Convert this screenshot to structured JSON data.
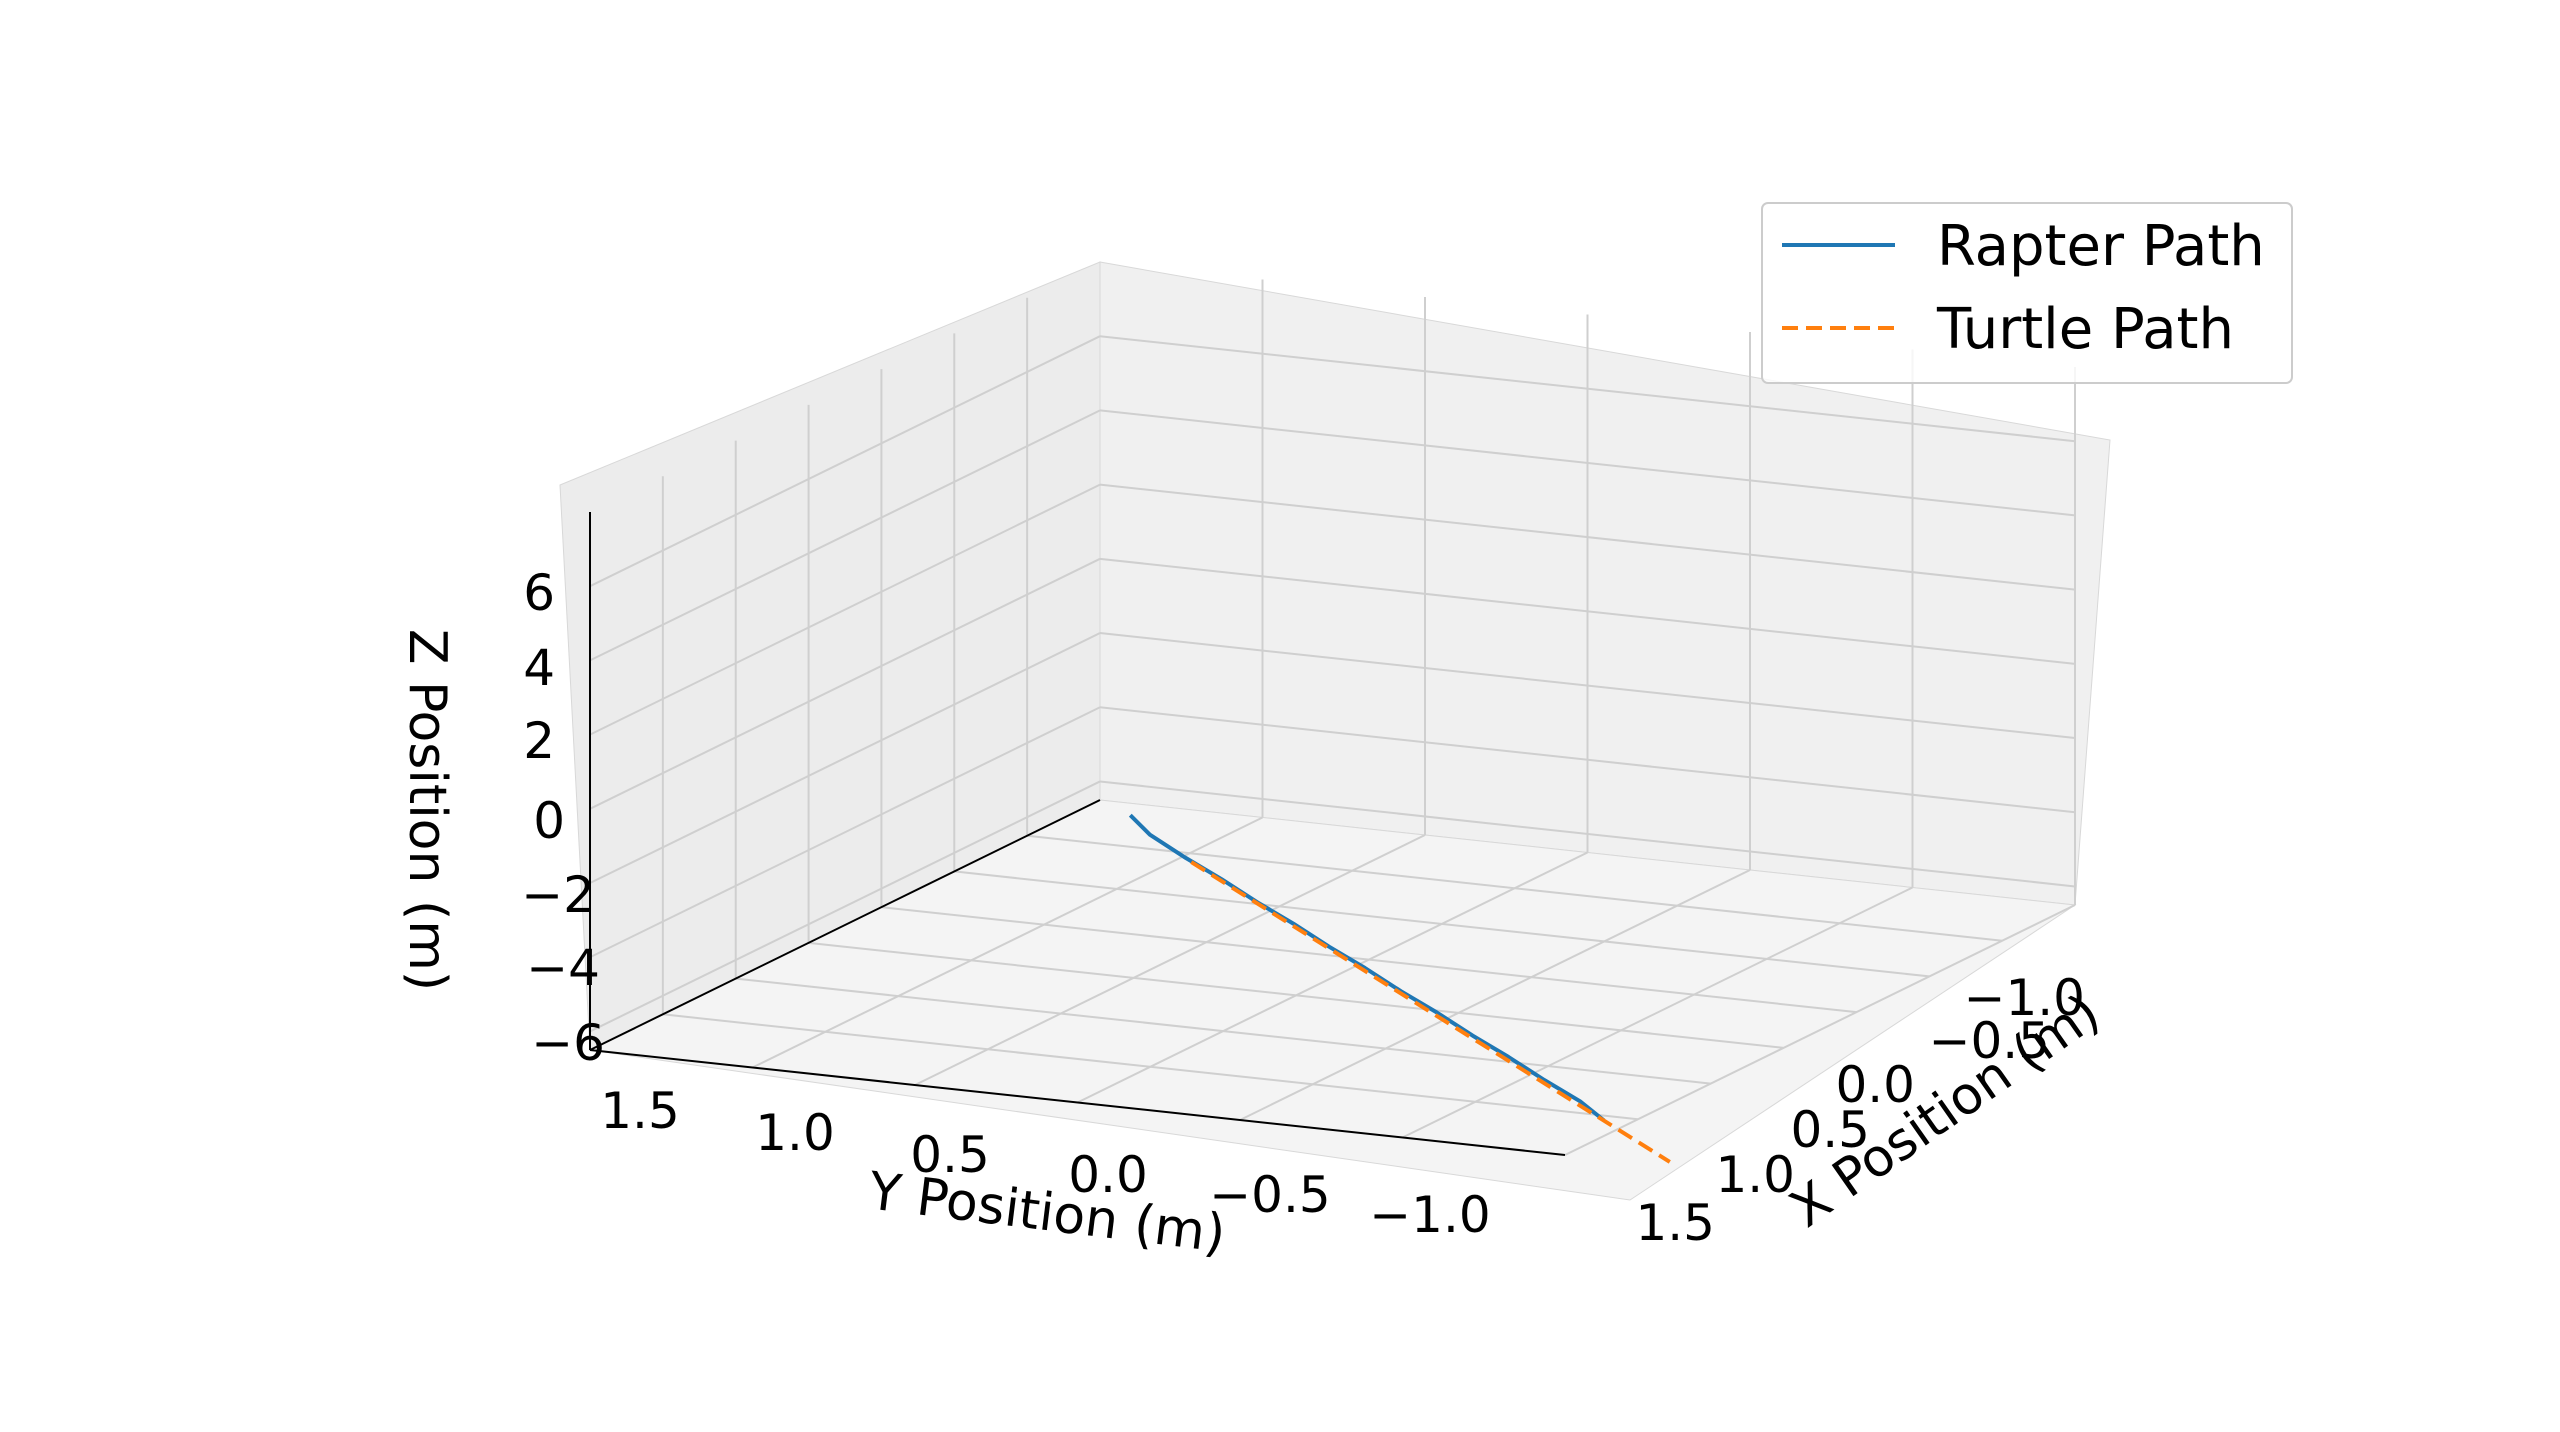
{
  "chart_data": {
    "type": "line",
    "projection": "3d",
    "title": "",
    "xlabel": "X Position (m)",
    "ylabel": "Y Position (m)",
    "zlabel": "Z Position (m)",
    "xlim": [
      -1.5,
      1.5
    ],
    "ylim": [
      -1.5,
      2.0
    ],
    "zlim": [
      -6.5,
      8.0
    ],
    "x_ticks": [
      "−1.0",
      "−0.5",
      "0.0",
      "0.5",
      "1.0",
      "1.5"
    ],
    "x_tick_values": [
      -1.0,
      -0.5,
      0.0,
      0.5,
      1.0,
      1.5
    ],
    "y_ticks": [
      "1.5",
      "1.0",
      "0.5",
      "0.0",
      "−0.5",
      "−1.0"
    ],
    "y_tick_values": [
      1.5,
      1.0,
      0.5,
      0.0,
      -0.5,
      -1.0
    ],
    "z_ticks": [
      "6",
      "4",
      "2",
      "0",
      "−2",
      "−4",
      "−6"
    ],
    "z_tick_values": [
      6,
      4,
      2,
      0,
      -2,
      -4,
      -6
    ],
    "grid": true,
    "legend_position": "top-right",
    "series": [
      {
        "name": "Rapter Path",
        "color": "#1f77b4",
        "style": "solid",
        "x": [
          -1.25,
          -1.1,
          -0.9,
          -0.7,
          -0.5,
          -0.3,
          -0.1,
          0.1,
          0.3,
          0.5,
          0.7,
          0.9,
          1.1,
          1.3,
          1.45
        ],
        "y": [
          -1.15,
          -0.95,
          -0.75,
          -0.55,
          -0.35,
          -0.15,
          0.05,
          0.25,
          0.45,
          0.65,
          0.85,
          1.05,
          1.25,
          1.45,
          1.62
        ],
        "z": [
          -6.0,
          -6.0,
          -6.05,
          -6.05,
          -6.1,
          -6.1,
          -6.15,
          -6.15,
          -6.2,
          -6.2,
          -6.25,
          -6.25,
          -6.3,
          -6.3,
          -6.35
        ]
      },
      {
        "name": "Turtle Path",
        "color": "#ff7f0e",
        "style": "dashed",
        "x": [
          -0.95,
          1.8
        ],
        "y": [
          -0.9,
          1.95
        ],
        "z": [
          -6.5,
          -6.5
        ]
      }
    ]
  }
}
